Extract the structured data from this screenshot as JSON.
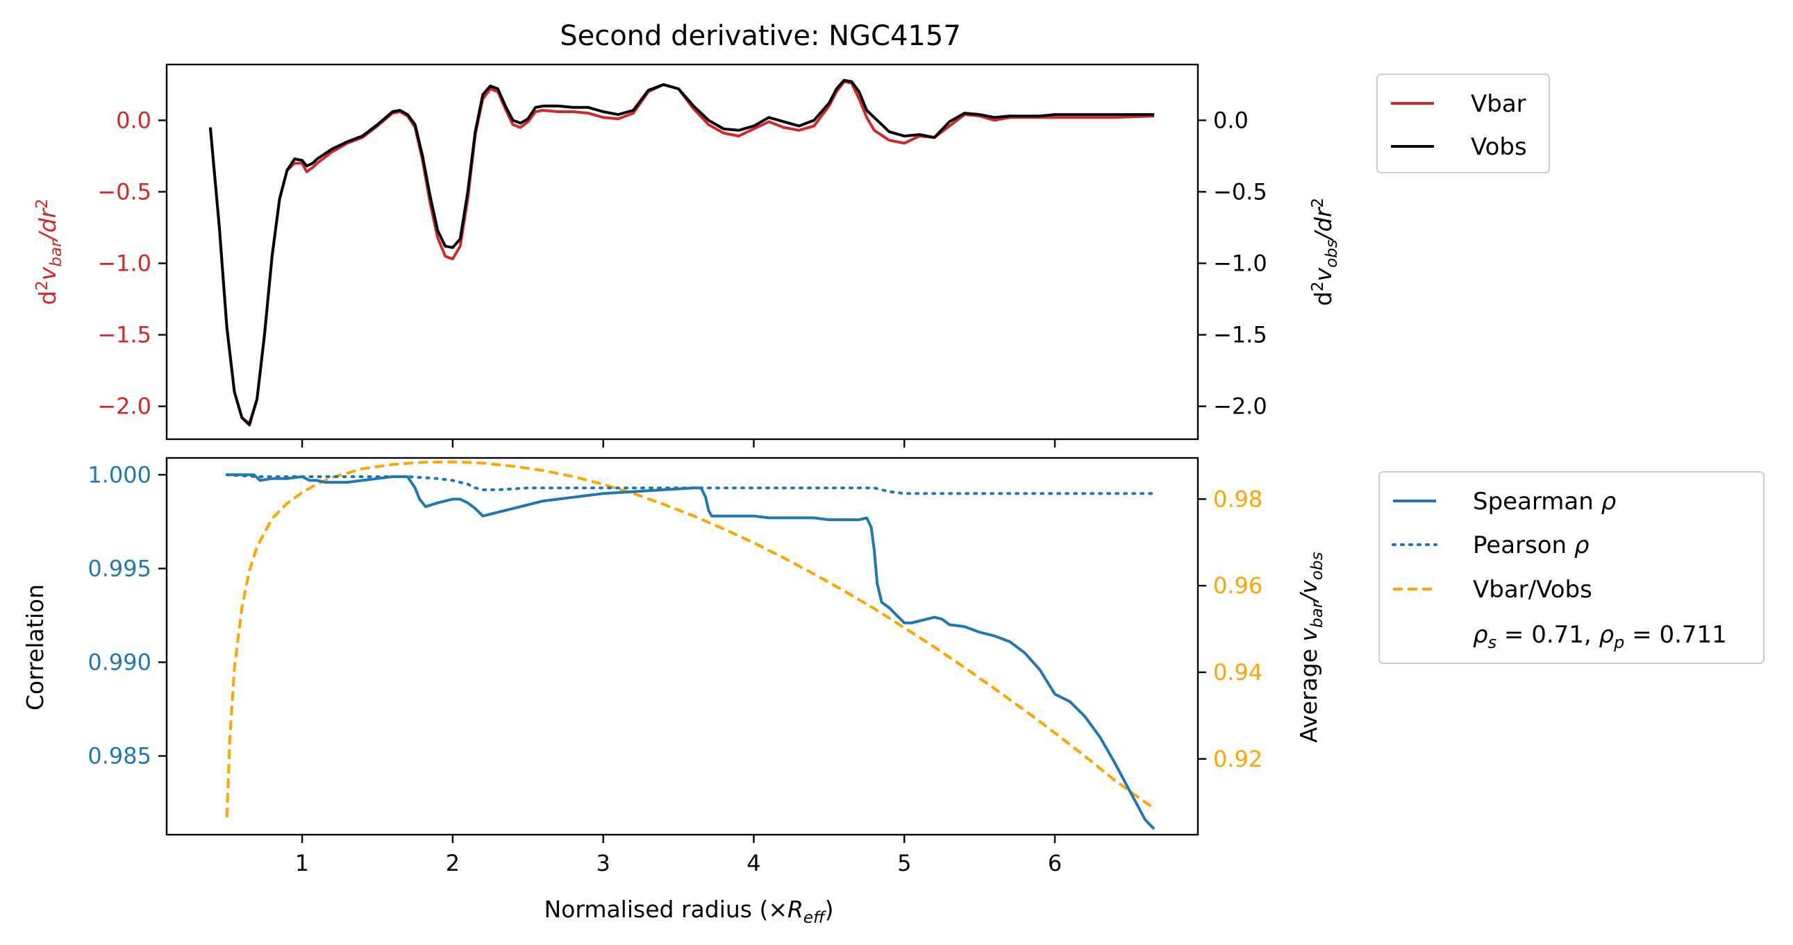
{
  "colors": {
    "vbar": "#d62728",
    "vobs": "#000000",
    "spearman": "#1f77b4",
    "pearson": "#1f77b4",
    "ratio": "#ffa500"
  },
  "chart_data": [
    {
      "type": "line",
      "title": "Second derivative: NGC4157",
      "xlabel": "",
      "ylabel_left": "d²v_bar/dr²",
      "ylabel_right": "d²v_obs/dr²",
      "xlim": [
        0.1,
        6.95
      ],
      "ylim_left": [
        -2.23,
        0.39
      ],
      "ylim_right": [
        -2.23,
        0.39
      ],
      "yticks_left": [
        0.0,
        -0.5,
        -1.0,
        -1.5,
        -2.0
      ],
      "yticks_left_labels": [
        "0.0",
        "−0.5",
        "−1.0",
        "−1.5",
        "−2.0"
      ],
      "yticks_right": [
        0.0,
        -0.5,
        -1.0,
        -1.5,
        -2.0
      ],
      "yticks_right_labels": [
        "0.0",
        "−0.5",
        "−1.0",
        "−1.5",
        "−2.0"
      ],
      "legend": {
        "position": "outside-top-right",
        "entries": [
          "Vbar",
          "Vobs"
        ]
      },
      "series": [
        {
          "name": "Vbar",
          "axis": "left",
          "x": [
            0.39,
            0.45,
            0.5,
            0.55,
            0.6,
            0.65,
            0.7,
            0.75,
            0.8,
            0.85,
            0.9,
            0.95,
            1.0,
            1.03,
            1.07,
            1.1,
            1.2,
            1.3,
            1.4,
            1.5,
            1.6,
            1.65,
            1.7,
            1.75,
            1.8,
            1.85,
            1.9,
            1.95,
            2.0,
            2.05,
            2.1,
            2.15,
            2.2,
            2.25,
            2.3,
            2.35,
            2.4,
            2.45,
            2.5,
            2.55,
            2.6,
            2.7,
            2.8,
            2.9,
            3.0,
            3.1,
            3.2,
            3.3,
            3.4,
            3.5,
            3.6,
            3.7,
            3.8,
            3.9,
            4.0,
            4.1,
            4.2,
            4.3,
            4.4,
            4.5,
            4.55,
            4.6,
            4.65,
            4.7,
            4.75,
            4.8,
            4.9,
            5.0,
            5.1,
            5.2,
            5.3,
            5.4,
            5.5,
            5.6,
            5.7,
            5.8,
            5.9,
            6.0,
            6.2,
            6.4,
            6.66
          ],
          "y": [
            -0.05,
            -0.75,
            -1.45,
            -1.9,
            -2.08,
            -2.12,
            -1.95,
            -1.5,
            -0.95,
            -0.55,
            -0.35,
            -0.3,
            -0.3,
            -0.36,
            -0.33,
            -0.3,
            -0.22,
            -0.16,
            -0.12,
            -0.04,
            0.05,
            0.06,
            0.03,
            -0.05,
            -0.28,
            -0.58,
            -0.82,
            -0.95,
            -0.97,
            -0.88,
            -0.55,
            -0.1,
            0.15,
            0.22,
            0.2,
            0.08,
            -0.03,
            -0.05,
            -0.01,
            0.06,
            0.07,
            0.06,
            0.06,
            0.05,
            0.02,
            0.01,
            0.05,
            0.2,
            0.25,
            0.22,
            0.08,
            -0.03,
            -0.09,
            -0.11,
            -0.06,
            -0.01,
            -0.05,
            -0.07,
            -0.04,
            0.1,
            0.2,
            0.27,
            0.26,
            0.15,
            0.02,
            -0.07,
            -0.14,
            -0.16,
            -0.11,
            -0.12,
            -0.04,
            0.04,
            0.03,
            0.0,
            0.02,
            0.02,
            0.02,
            0.02,
            0.02,
            0.02,
            0.03
          ]
        },
        {
          "name": "Vobs",
          "axis": "right",
          "x": [
            0.39,
            0.45,
            0.5,
            0.55,
            0.6,
            0.65,
            0.7,
            0.75,
            0.8,
            0.85,
            0.9,
            0.95,
            1.0,
            1.03,
            1.07,
            1.1,
            1.2,
            1.3,
            1.4,
            1.5,
            1.6,
            1.65,
            1.7,
            1.75,
            1.8,
            1.85,
            1.9,
            1.95,
            2.0,
            2.05,
            2.1,
            2.15,
            2.2,
            2.25,
            2.3,
            2.35,
            2.4,
            2.45,
            2.5,
            2.55,
            2.6,
            2.7,
            2.8,
            2.9,
            3.0,
            3.1,
            3.2,
            3.3,
            3.4,
            3.5,
            3.6,
            3.7,
            3.8,
            3.9,
            4.0,
            4.1,
            4.2,
            4.3,
            4.4,
            4.5,
            4.55,
            4.6,
            4.65,
            4.7,
            4.75,
            4.8,
            4.9,
            5.0,
            5.1,
            5.2,
            5.3,
            5.4,
            5.5,
            5.6,
            5.7,
            5.8,
            5.9,
            6.0,
            6.2,
            6.4,
            6.66
          ],
          "y": [
            -0.05,
            -0.75,
            -1.45,
            -1.9,
            -2.08,
            -2.13,
            -1.95,
            -1.5,
            -0.95,
            -0.55,
            -0.35,
            -0.27,
            -0.28,
            -0.32,
            -0.3,
            -0.27,
            -0.2,
            -0.15,
            -0.11,
            -0.03,
            0.06,
            0.07,
            0.04,
            -0.03,
            -0.25,
            -0.53,
            -0.77,
            -0.88,
            -0.89,
            -0.83,
            -0.5,
            -0.08,
            0.18,
            0.24,
            0.22,
            0.1,
            0.0,
            -0.02,
            0.01,
            0.09,
            0.1,
            0.1,
            0.09,
            0.09,
            0.06,
            0.04,
            0.07,
            0.21,
            0.25,
            0.22,
            0.1,
            0.0,
            -0.06,
            -0.07,
            -0.04,
            0.02,
            -0.01,
            -0.04,
            0.0,
            0.12,
            0.22,
            0.28,
            0.27,
            0.2,
            0.07,
            0.02,
            -0.08,
            -0.11,
            -0.1,
            -0.12,
            -0.01,
            0.05,
            0.04,
            0.02,
            0.03,
            0.03,
            0.03,
            0.04,
            0.04,
            0.04,
            0.04
          ]
        }
      ]
    },
    {
      "type": "line",
      "title": "",
      "xlabel": "Normalised radius (×R_eff)",
      "ylabel_left": "Correlation",
      "ylabel_right": "Average v_bar/v_obs",
      "xlim": [
        0.1,
        6.95
      ],
      "ylim_left": [
        0.9808,
        1.0009
      ],
      "ylim_right": [
        0.9025,
        0.9895
      ],
      "xticks": [
        1,
        2,
        3,
        4,
        5,
        6
      ],
      "xticks_labels": [
        "1",
        "2",
        "3",
        "4",
        "5",
        "6"
      ],
      "yticks_left": [
        1.0,
        0.995,
        0.99,
        0.985
      ],
      "yticks_left_labels": [
        "1.000",
        "0.995",
        "0.990",
        "0.985"
      ],
      "yticks_right": [
        0.98,
        0.96,
        0.94,
        0.92
      ],
      "yticks_right_labels": [
        "0.98",
        "0.96",
        "0.94",
        "0.92"
      ],
      "legend": {
        "position": "outside-right",
        "entries": [
          "Spearman ρ",
          "Pearson ρ",
          "Vbar/Vobs"
        ],
        "annotation": "ρs = 0.71, ρp = 0.711"
      },
      "series": [
        {
          "name": "Spearman ρ",
          "axis": "left",
          "style": "solid",
          "x": [
            0.5,
            0.6,
            0.65,
            0.68,
            0.72,
            0.8,
            0.9,
            1.0,
            1.05,
            1.1,
            1.15,
            1.2,
            1.25,
            1.3,
            1.4,
            1.5,
            1.6,
            1.7,
            1.75,
            1.78,
            1.82,
            1.9,
            2.0,
            2.05,
            2.1,
            2.15,
            2.2,
            2.3,
            2.4,
            2.5,
            2.6,
            2.7,
            2.8,
            2.9,
            3.0,
            3.2,
            3.4,
            3.6,
            3.65,
            3.68,
            3.7,
            3.72,
            3.75,
            3.8,
            3.9,
            4.0,
            4.1,
            4.2,
            4.3,
            4.4,
            4.5,
            4.6,
            4.65,
            4.7,
            4.75,
            4.78,
            4.8,
            4.82,
            4.85,
            4.9,
            4.95,
            5.0,
            5.05,
            5.1,
            5.2,
            5.25,
            5.3,
            5.4,
            5.5,
            5.6,
            5.7,
            5.8,
            5.9,
            6.0,
            6.1,
            6.2,
            6.3,
            6.4,
            6.5,
            6.6,
            6.66
          ],
          "y": [
            1.0,
            1.0,
            1.0,
            1.0,
            0.9997,
            0.9998,
            0.9998,
            0.9999,
            0.9997,
            0.9997,
            0.9996,
            0.9996,
            0.9996,
            0.9996,
            0.9997,
            0.9998,
            0.9999,
            0.9999,
            0.9993,
            0.9987,
            0.9983,
            0.9985,
            0.9987,
            0.9987,
            0.9985,
            0.9982,
            0.9978,
            0.998,
            0.9982,
            0.9984,
            0.9986,
            0.9987,
            0.9988,
            0.9989,
            0.999,
            0.9991,
            0.9992,
            0.9993,
            0.9993,
            0.9988,
            0.9981,
            0.9978,
            0.9978,
            0.9978,
            0.9978,
            0.9978,
            0.9977,
            0.9977,
            0.9977,
            0.9977,
            0.9976,
            0.9976,
            0.9976,
            0.9976,
            0.9977,
            0.9972,
            0.996,
            0.9942,
            0.9932,
            0.9929,
            0.9925,
            0.9921,
            0.9921,
            0.9922,
            0.9924,
            0.9923,
            0.992,
            0.9919,
            0.9916,
            0.9914,
            0.9911,
            0.9905,
            0.9896,
            0.9883,
            0.9879,
            0.9871,
            0.986,
            0.9846,
            0.9831,
            0.9816,
            0.9811
          ]
        },
        {
          "name": "Pearson ρ",
          "axis": "left",
          "style": "dotted",
          "x": [
            0.5,
            0.7,
            0.9,
            1.1,
            1.3,
            1.5,
            1.7,
            1.9,
            2.0,
            2.1,
            2.15,
            2.2,
            2.3,
            2.5,
            3.0,
            3.5,
            4.0,
            4.5,
            4.8,
            4.9,
            5.0,
            5.5,
            6.0,
            6.66
          ],
          "y": [
            1.0,
            0.9999,
            0.9999,
            0.9999,
            0.9999,
            0.9999,
            0.9999,
            0.9998,
            0.9997,
            0.9995,
            0.9993,
            0.9992,
            0.9992,
            0.9993,
            0.9993,
            0.9993,
            0.9993,
            0.9993,
            0.9993,
            0.9991,
            0.999,
            0.999,
            0.999,
            0.999
          ]
        },
        {
          "name": "Vbar/Vobs",
          "axis": "right",
          "style": "dashed",
          "x": [
            0.5,
            0.52,
            0.55,
            0.6,
            0.65,
            0.7,
            0.8,
            0.9,
            1.0,
            1.1,
            1.2,
            1.4,
            1.6,
            1.8,
            2.0,
            2.2,
            2.4,
            2.6,
            2.8,
            3.0,
            3.2,
            3.4,
            3.6,
            3.8,
            4.0,
            4.2,
            4.4,
            4.6,
            4.8,
            5.0,
            5.2,
            5.4,
            5.6,
            5.8,
            6.0,
            6.2,
            6.4,
            6.66
          ],
          "y": [
            0.9065,
            0.925,
            0.941,
            0.955,
            0.9635,
            0.969,
            0.9755,
            0.979,
            0.9815,
            0.9835,
            0.985,
            0.987,
            0.988,
            0.9885,
            0.9886,
            0.9883,
            0.9876,
            0.9866,
            0.9852,
            0.9834,
            0.9813,
            0.9788,
            0.9761,
            0.9731,
            0.9699,
            0.9664,
            0.9627,
            0.9588,
            0.9547,
            0.9503,
            0.9458,
            0.9411,
            0.9362,
            0.9312,
            0.926,
            0.9206,
            0.915,
            0.9085
          ]
        }
      ]
    }
  ]
}
